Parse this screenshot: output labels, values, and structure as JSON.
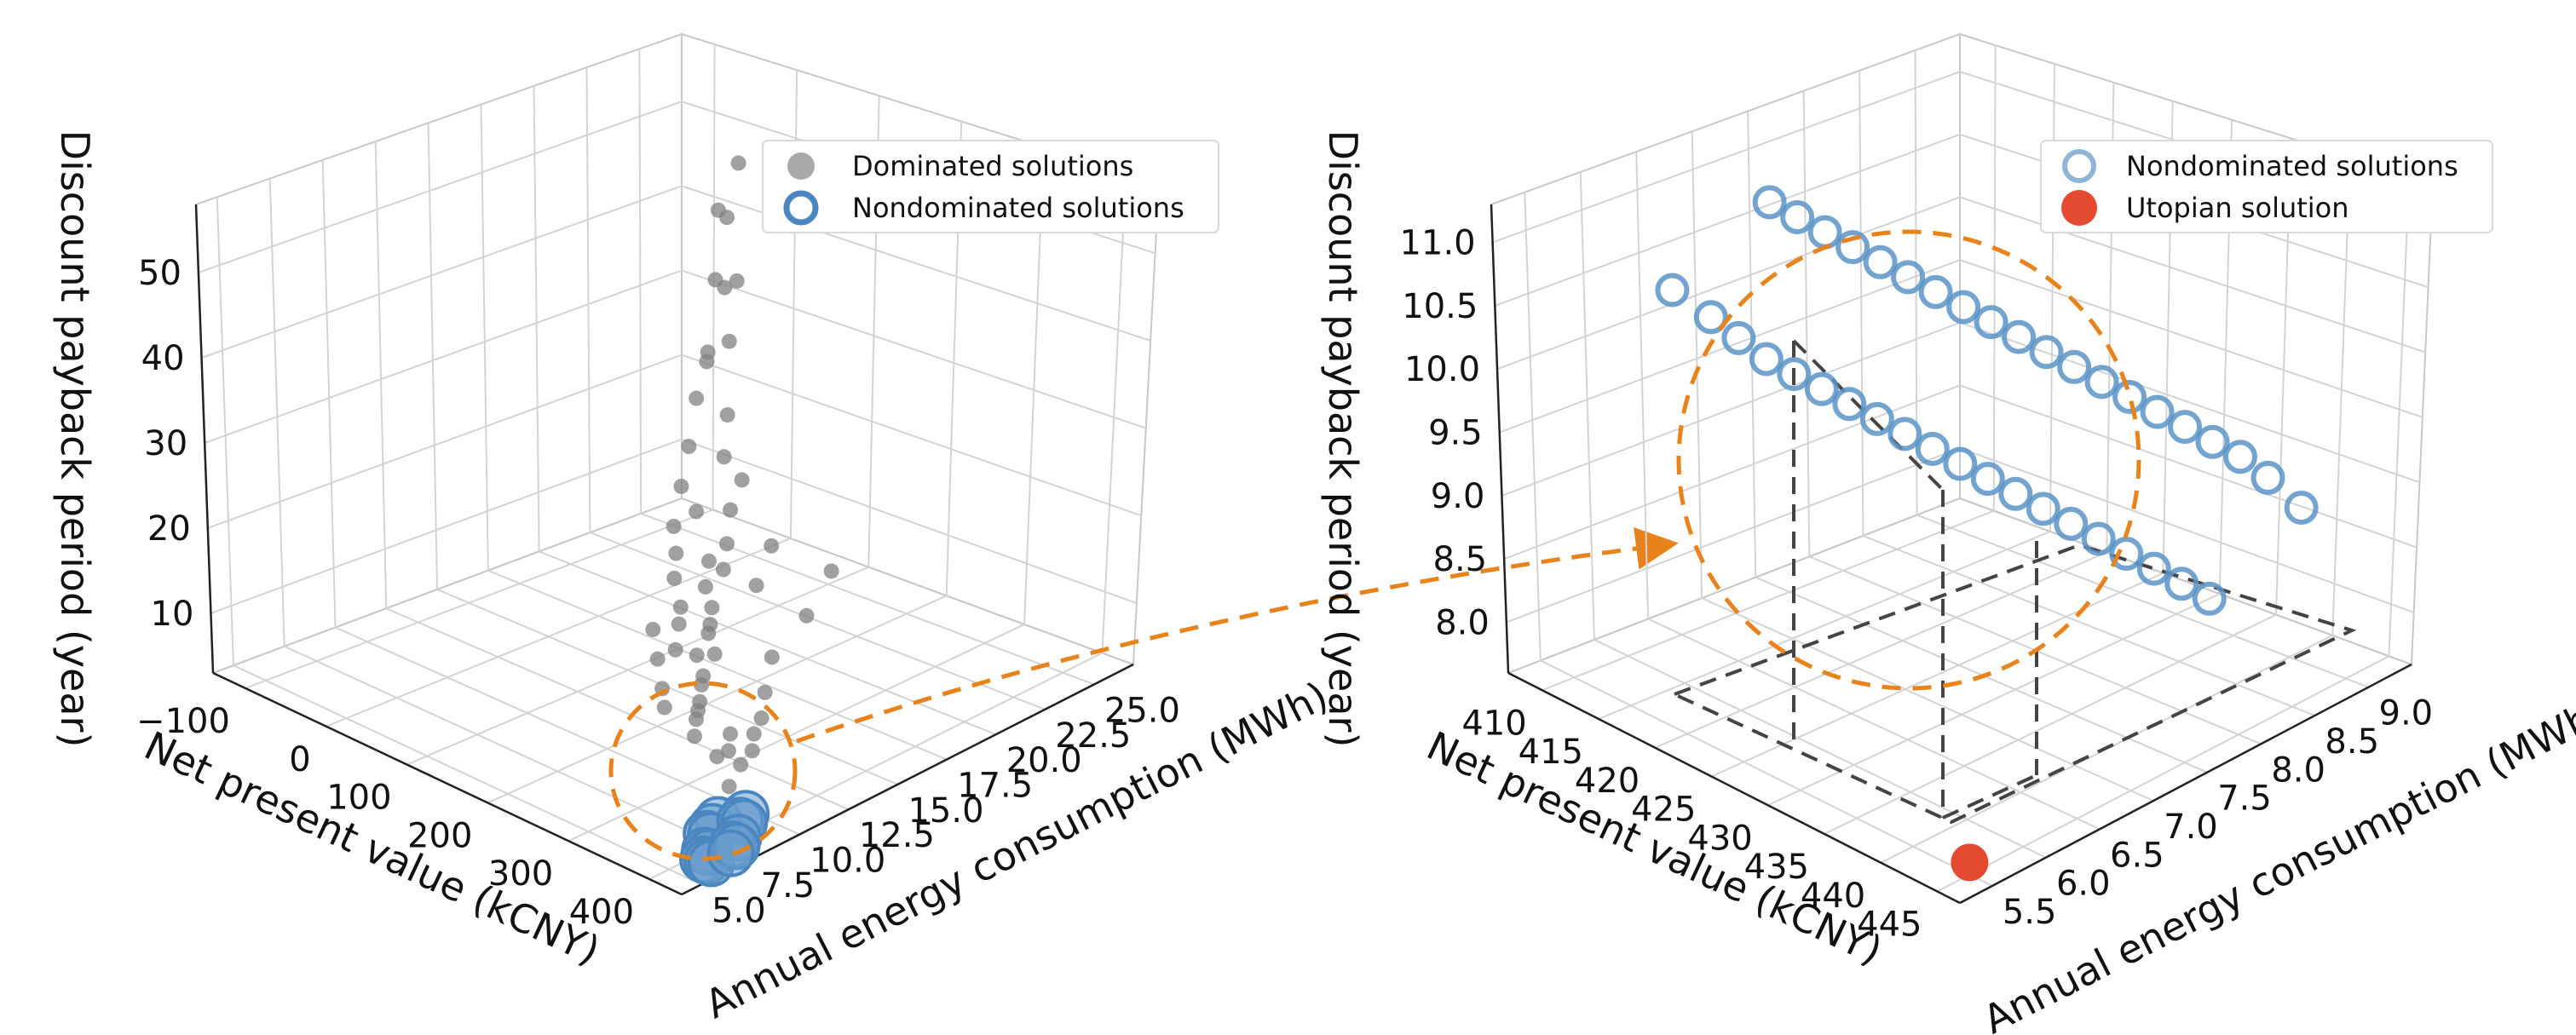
{
  "chart_data": [
    {
      "type": "scatter3d",
      "panel": "left",
      "xlabel": "Net present value (kCNY)",
      "ylabel": "Annual energy consumption (MWh)",
      "zlabel": "Discount payback period (year)",
      "x_ticks": [
        "−100",
        "0",
        "100",
        "200",
        "300",
        "400"
      ],
      "y_ticks": [
        "5.0",
        "7.5",
        "10.0",
        "12.5",
        "15.0",
        "17.5",
        "20.0",
        "22.5",
        "25.0"
      ],
      "z_ticks": [
        "10",
        "20",
        "30",
        "40",
        "50"
      ],
      "legend": [
        {
          "label": "Dominated solutions",
          "marker": "filled",
          "color": "#9e9e9e"
        },
        {
          "label": "Nondominated solutions",
          "marker": "ring",
          "color": "#4a86c0"
        }
      ],
      "series": [
        {
          "name": "Dominated solutions",
          "color": "#808080",
          "points": [
            {
              "npv": 60,
              "energy": 21.5,
              "dpp": 48
            },
            {
              "npv": 100,
              "energy": 20.8,
              "dpp": 42
            },
            {
              "npv": 80,
              "energy": 21.0,
              "dpp": 40
            },
            {
              "npv": 110,
              "energy": 20.0,
              "dpp": 36
            },
            {
              "npv": 70,
              "energy": 20.5,
              "dpp": 31
            },
            {
              "npv": 120,
              "energy": 19.5,
              "dpp": 28
            },
            {
              "npv": 140,
              "energy": 18.5,
              "dpp": 25
            },
            {
              "npv": 150,
              "energy": 19.0,
              "dpp": 22
            },
            {
              "npv": 160,
              "energy": 18.0,
              "dpp": 20
            },
            {
              "npv": 130,
              "energy": 17.5,
              "dpp": 19
            },
            {
              "npv": 180,
              "energy": 17.0,
              "dpp": 18
            },
            {
              "npv": 200,
              "energy": 16.0,
              "dpp": 17
            },
            {
              "npv": 170,
              "energy": 16.5,
              "dpp": 16
            },
            {
              "npv": 190,
              "energy": 15.5,
              "dpp": 15
            },
            {
              "npv": 210,
              "energy": 15.0,
              "dpp": 14
            },
            {
              "npv": 220,
              "energy": 14.5,
              "dpp": 13
            },
            {
              "npv": 230,
              "energy": 14.0,
              "dpp": 13
            },
            {
              "npv": 250,
              "energy": 13.5,
              "dpp": 12
            },
            {
              "npv": 240,
              "energy": 13.0,
              "dpp": 12
            },
            {
              "npv": 260,
              "energy": 12.5,
              "dpp": 11
            },
            {
              "npv": 270,
              "energy": 12.0,
              "dpp": 11
            },
            {
              "npv": 280,
              "energy": 11.5,
              "dpp": 10
            },
            {
              "npv": 290,
              "energy": 11.0,
              "dpp": 10
            },
            {
              "npv": 300,
              "energy": 10.5,
              "dpp": 10
            },
            {
              "npv": 310,
              "energy": 10.0,
              "dpp": 9
            },
            {
              "npv": 150,
              "energy": 20.5,
              "dpp": 12
            },
            {
              "npv": 200,
              "energy": 21.5,
              "dpp": 10
            },
            {
              "npv": 180,
              "energy": 18.5,
              "dpp": 11
            },
            {
              "npv": 230,
              "energy": 19.0,
              "dpp": 9
            },
            {
              "npv": 260,
              "energy": 16.0,
              "dpp": 9
            },
            {
              "npv": 300,
              "energy": 14.0,
              "dpp": 9
            },
            {
              "npv": 330,
              "energy": 11.0,
              "dpp": 9
            },
            {
              "npv": 350,
              "energy": 9.5,
              "dpp": 9
            },
            {
              "npv": 340,
              "energy": 10.5,
              "dpp": 8
            },
            {
              "npv": 210,
              "energy": 12.0,
              "dpp": 15
            },
            {
              "npv": 240,
              "energy": 11.0,
              "dpp": 14
            },
            {
              "npv": 270,
              "energy": 10.0,
              "dpp": 13
            },
            {
              "npv": 230,
              "energy": 12.5,
              "dpp": 16
            },
            {
              "npv": 250,
              "energy": 11.5,
              "dpp": 15
            },
            {
              "npv": 285,
              "energy": 9.5,
              "dpp": 12
            },
            {
              "npv": 220,
              "energy": 13.0,
              "dpp": 17
            },
            {
              "npv": 200,
              "energy": 13.5,
              "dpp": 19
            },
            {
              "npv": 190,
              "energy": 14.0,
              "dpp": 21
            },
            {
              "npv": 175,
              "energy": 14.5,
              "dpp": 23
            },
            {
              "npv": 160,
              "energy": 15.5,
              "dpp": 26
            },
            {
              "npv": 145,
              "energy": 16.5,
              "dpp": 29
            },
            {
              "npv": 130,
              "energy": 17.5,
              "dpp": 33
            },
            {
              "npv": 120,
              "energy": 18.5,
              "dpp": 37
            },
            {
              "npv": 105,
              "energy": 19.5,
              "dpp": 44
            },
            {
              "npv": 95,
              "energy": 20.5,
              "dpp": 50
            },
            {
              "npv": 85,
              "energy": 21.5,
              "dpp": 55
            },
            {
              "npv": 320,
              "energy": 13.0,
              "dpp": 8
            },
            {
              "npv": 335,
              "energy": 12.0,
              "dpp": 8
            },
            {
              "npv": 345,
              "energy": 11.5,
              "dpp": 7
            },
            {
              "npv": 355,
              "energy": 10.5,
              "dpp": 7
            },
            {
              "npv": 365,
              "energy": 9.5,
              "dpp": 6
            }
          ]
        },
        {
          "name": "Nondominated solutions",
          "color": "#4a86c0",
          "points": [
            {
              "npv": 400,
              "energy": 7.5,
              "dpp": 6
            },
            {
              "npv": 405,
              "energy": 7.0,
              "dpp": 6
            },
            {
              "npv": 410,
              "energy": 6.5,
              "dpp": 6
            },
            {
              "npv": 415,
              "energy": 6.5,
              "dpp": 6
            },
            {
              "npv": 420,
              "energy": 6.0,
              "dpp": 5
            },
            {
              "npv": 425,
              "energy": 6.0,
              "dpp": 5
            },
            {
              "npv": 430,
              "energy": 5.5,
              "dpp": 5
            },
            {
              "npv": 435,
              "energy": 5.5,
              "dpp": 5
            },
            {
              "npv": 440,
              "energy": 5.5,
              "dpp": 5
            },
            {
              "npv": 410,
              "energy": 8.5,
              "dpp": 6
            },
            {
              "npv": 415,
              "energy": 8.0,
              "dpp": 6
            },
            {
              "npv": 420,
              "energy": 8.0,
              "dpp": 6
            },
            {
              "npv": 425,
              "energy": 7.5,
              "dpp": 5
            },
            {
              "npv": 430,
              "energy": 7.0,
              "dpp": 5
            },
            {
              "npv": 435,
              "energy": 7.0,
              "dpp": 5
            },
            {
              "npv": 440,
              "energy": 6.5,
              "dpp": 5
            }
          ]
        }
      ]
    },
    {
      "type": "scatter3d",
      "panel": "right",
      "xlabel": "Net present value (kCNY)",
      "ylabel": "Annual energy consumption (MWh)",
      "zlabel": "Discount payback period (year)",
      "x_ticks": [
        "410",
        "415",
        "420",
        "425",
        "430",
        "435",
        "440",
        "445"
      ],
      "y_ticks": [
        "5.5",
        "6.0",
        "6.5",
        "7.0",
        "7.5",
        "8.0",
        "8.5",
        "9.0"
      ],
      "z_ticks": [
        "8.0",
        "8.5",
        "9.0",
        "9.5",
        "10.0",
        "10.5",
        "11.0"
      ],
      "xlim": [
        408,
        446
      ],
      "ylim": [
        5.3,
        9.2
      ],
      "zlim": [
        7.7,
        11.2
      ],
      "legend": [
        {
          "label": "Nondominated solutions",
          "marker": "ring",
          "color": "#6f9fcc"
        },
        {
          "label": "Utopian solution",
          "marker": "filled",
          "color": "#e34a2f"
        }
      ],
      "series": [
        {
          "name": "Nondominated solutions",
          "color": "#5b93c7",
          "points": [
            {
              "npv": 412.0,
              "energy": 6.2,
              "dpp": 10.55
            },
            {
              "npv": 414.0,
              "energy": 6.35,
              "dpp": 10.35
            },
            {
              "npv": 415.5,
              "energy": 6.45,
              "dpp": 10.2
            },
            {
              "npv": 417.0,
              "energy": 6.55,
              "dpp": 10.05
            },
            {
              "npv": 418.5,
              "energy": 6.65,
              "dpp": 9.95
            },
            {
              "npv": 420.0,
              "energy": 6.75,
              "dpp": 9.85
            },
            {
              "npv": 421.5,
              "energy": 6.85,
              "dpp": 9.75
            },
            {
              "npv": 423.0,
              "energy": 6.95,
              "dpp": 9.65
            },
            {
              "npv": 424.5,
              "energy": 7.05,
              "dpp": 9.55
            },
            {
              "npv": 426.0,
              "energy": 7.15,
              "dpp": 9.45
            },
            {
              "npv": 427.5,
              "energy": 7.25,
              "dpp": 9.35
            },
            {
              "npv": 429.0,
              "energy": 7.35,
              "dpp": 9.25
            },
            {
              "npv": 430.5,
              "energy": 7.45,
              "dpp": 9.15
            },
            {
              "npv": 432.0,
              "energy": 7.55,
              "dpp": 9.05
            },
            {
              "npv": 433.5,
              "energy": 7.65,
              "dpp": 8.95
            },
            {
              "npv": 435.0,
              "energy": 7.75,
              "dpp": 8.85
            },
            {
              "npv": 436.5,
              "energy": 7.85,
              "dpp": 8.75
            },
            {
              "npv": 438.0,
              "energy": 7.95,
              "dpp": 8.65
            },
            {
              "npv": 439.5,
              "energy": 8.05,
              "dpp": 8.55
            },
            {
              "npv": 441.0,
              "energy": 8.15,
              "dpp": 8.45
            },
            {
              "npv": 413.0,
              "energy": 7.0,
              "dpp": 10.95
            },
            {
              "npv": 414.5,
              "energy": 7.1,
              "dpp": 10.85
            },
            {
              "npv": 416.0,
              "energy": 7.2,
              "dpp": 10.75
            },
            {
              "npv": 417.5,
              "energy": 7.3,
              "dpp": 10.65
            },
            {
              "npv": 419.0,
              "energy": 7.4,
              "dpp": 10.55
            },
            {
              "npv": 420.5,
              "energy": 7.5,
              "dpp": 10.45
            },
            {
              "npv": 422.0,
              "energy": 7.6,
              "dpp": 10.35
            },
            {
              "npv": 423.5,
              "energy": 7.7,
              "dpp": 10.25
            },
            {
              "npv": 425.0,
              "energy": 7.8,
              "dpp": 10.15
            },
            {
              "npv": 426.5,
              "energy": 7.9,
              "dpp": 10.05
            },
            {
              "npv": 428.0,
              "energy": 8.0,
              "dpp": 9.95
            },
            {
              "npv": 429.5,
              "energy": 8.1,
              "dpp": 9.85
            },
            {
              "npv": 431.0,
              "energy": 8.2,
              "dpp": 9.75
            },
            {
              "npv": 432.5,
              "energy": 8.3,
              "dpp": 9.65
            },
            {
              "npv": 434.0,
              "energy": 8.4,
              "dpp": 9.55
            },
            {
              "npv": 435.5,
              "energy": 8.5,
              "dpp": 9.45
            },
            {
              "npv": 437.0,
              "energy": 8.6,
              "dpp": 9.35
            },
            {
              "npv": 438.5,
              "energy": 8.7,
              "dpp": 9.25
            },
            {
              "npv": 440.0,
              "energy": 8.8,
              "dpp": 9.1
            },
            {
              "npv": 442.0,
              "energy": 8.9,
              "dpp": 8.9
            }
          ]
        },
        {
          "name": "Utopian solution",
          "color": "#e34a2f",
          "points": [
            {
              "npv": 445.0,
              "energy": 5.5,
              "dpp": 7.7
            }
          ]
        }
      ],
      "guides": "dashed projection lines from the extreme nondominated points to the utopian solution"
    }
  ],
  "annotations": {
    "zoom_arrow": "dashed orange arrow from the left highlighted cluster to the right panel",
    "highlight_color": "#e8821a"
  }
}
